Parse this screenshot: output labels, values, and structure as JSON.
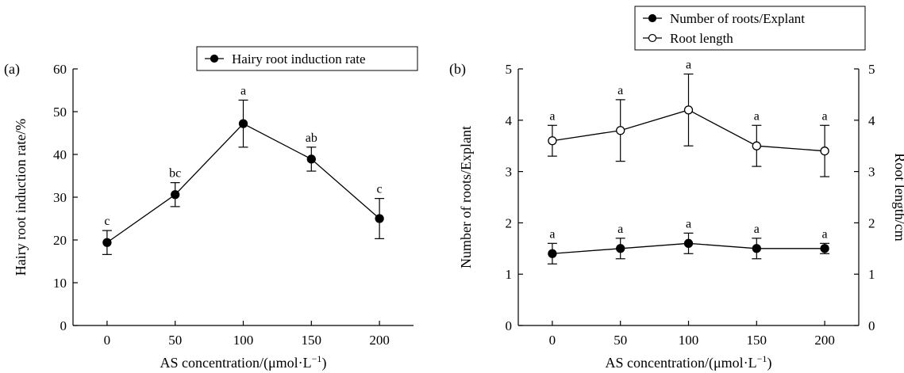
{
  "chart_data": [
    {
      "panel_label": "(a)",
      "type": "line",
      "xlabel": "AS concentration/(μmol·L",
      "xlabel_sup": "−1",
      "xlabel_end": ")",
      "ylabel": "Hairy root induction rate/%",
      "xlim": [
        -25,
        225
      ],
      "ylim": [
        0,
        60
      ],
      "x_ticks": [
        "0",
        "50",
        "100",
        "150",
        "200"
      ],
      "y_ticks": [
        "0",
        "10",
        "20",
        "30",
        "40",
        "50",
        "60"
      ],
      "x": [
        0,
        50,
        100,
        150,
        200
      ],
      "legend_position": "top-right",
      "series": [
        {
          "name": "Hairy root induction rate",
          "marker": "filled-circle",
          "values": [
            19.4,
            30.6,
            47.2,
            38.9,
            25.0
          ],
          "errors": [
            2.8,
            2.8,
            5.5,
            2.8,
            4.7
          ],
          "letters": [
            "c",
            "bc",
            "a",
            "ab",
            "c"
          ]
        }
      ]
    },
    {
      "panel_label": "(b)",
      "type": "line",
      "xlabel": "AS concentration/(μmol·L",
      "xlabel_sup": "−1",
      "xlabel_end": ")",
      "ylabel": "Number of roots/Explant",
      "ylabel_right": "Root length/cm",
      "xlim": [
        -25,
        225
      ],
      "ylim": [
        0,
        5
      ],
      "ylim_right": [
        0,
        5
      ],
      "x_ticks": [
        "0",
        "50",
        "100",
        "150",
        "200"
      ],
      "y_ticks": [
        "0",
        "1",
        "2",
        "3",
        "4",
        "5"
      ],
      "y_ticks_right": [
        "0",
        "1",
        "2",
        "3",
        "4",
        "5"
      ],
      "x": [
        0,
        50,
        100,
        150,
        200
      ],
      "legend_position": "top-center",
      "series": [
        {
          "name": "Number of roots/Explant",
          "marker": "filled-circle",
          "axis": "left",
          "values": [
            1.4,
            1.5,
            1.6,
            1.5,
            1.5
          ],
          "errors": [
            0.2,
            0.2,
            0.2,
            0.2,
            0.1
          ],
          "letters": [
            "a",
            "a",
            "a",
            "a",
            "a"
          ]
        },
        {
          "name": "Root length",
          "marker": "open-circle",
          "axis": "right",
          "values": [
            3.6,
            3.8,
            4.2,
            3.5,
            3.4
          ],
          "errors": [
            0.3,
            0.6,
            0.7,
            0.4,
            0.5
          ],
          "letters": [
            "a",
            "a",
            "a",
            "a",
            "a"
          ]
        }
      ]
    }
  ]
}
